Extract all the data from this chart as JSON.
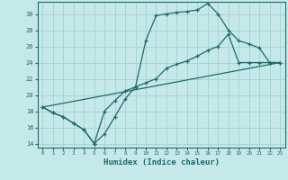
{
  "xlabel": "Humidex (Indice chaleur)",
  "xlim": [
    -0.5,
    23.5
  ],
  "ylim": [
    13.5,
    31.5
  ],
  "yticks": [
    14,
    16,
    18,
    20,
    22,
    24,
    26,
    28,
    30
  ],
  "xticks": [
    0,
    1,
    2,
    3,
    4,
    5,
    6,
    7,
    8,
    9,
    10,
    11,
    12,
    13,
    14,
    15,
    16,
    17,
    18,
    19,
    20,
    21,
    22,
    23
  ],
  "background_color": "#c5e8e8",
  "grid_color": "#aad4d4",
  "line_color": "#1e6b6b",
  "line1_x": [
    0,
    1,
    2,
    3,
    4,
    5,
    6,
    7,
    8,
    9,
    10,
    11,
    12,
    13,
    14,
    15,
    16,
    17,
    18,
    19,
    20,
    21,
    22,
    23
  ],
  "line1_y": [
    18.5,
    17.8,
    17.3,
    16.5,
    15.7,
    14.0,
    15.2,
    17.3,
    19.5,
    21.0,
    26.7,
    29.8,
    30.0,
    30.2,
    30.3,
    30.5,
    31.3,
    30.0,
    28.0,
    26.7,
    26.3,
    25.8,
    24.0,
    24.0
  ],
  "line2_x": [
    0,
    1,
    2,
    3,
    4,
    5,
    6,
    7,
    8,
    9,
    10,
    11,
    12,
    13,
    14,
    15,
    16,
    17,
    18,
    19,
    20,
    21,
    22,
    23
  ],
  "line2_y": [
    18.5,
    17.8,
    17.3,
    16.5,
    15.7,
    14.0,
    18.0,
    19.3,
    20.5,
    21.0,
    21.5,
    22.0,
    23.3,
    23.8,
    24.2,
    24.8,
    25.5,
    26.0,
    27.5,
    24.0,
    24.0,
    24.0,
    24.0,
    24.0
  ],
  "line3_x": [
    0,
    23
  ],
  "line3_y": [
    18.5,
    24.0
  ]
}
